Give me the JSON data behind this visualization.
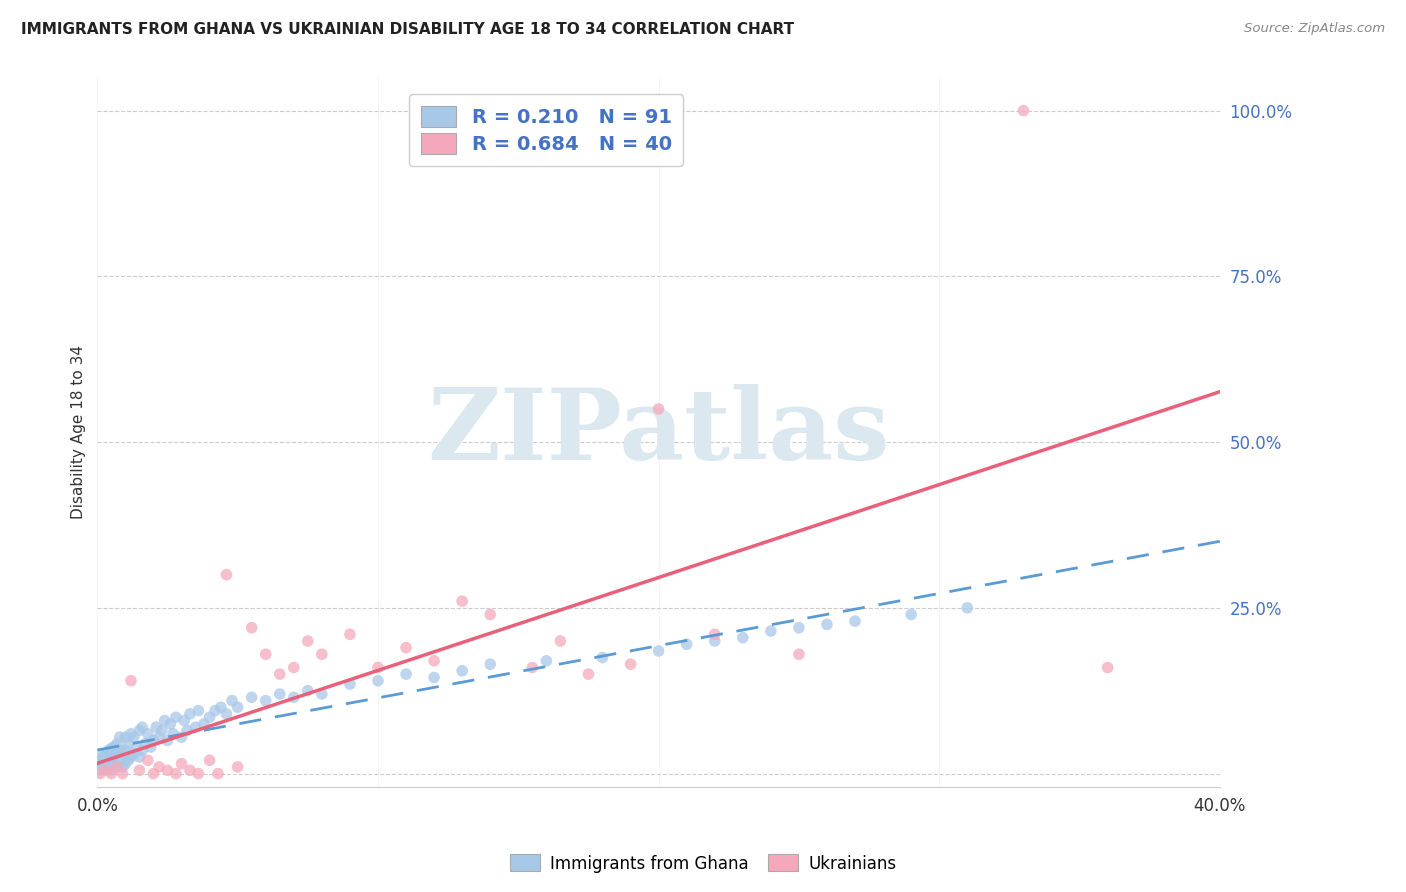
{
  "title": "IMMIGRANTS FROM GHANA VS UKRAINIAN DISABILITY AGE 18 TO 34 CORRELATION CHART",
  "source": "Source: ZipAtlas.com",
  "ylabel": "Disability Age 18 to 34",
  "xlim": [
    0.0,
    0.4
  ],
  "ylim": [
    -0.02,
    1.05
  ],
  "xticks": [
    0.0,
    0.1,
    0.2,
    0.3,
    0.4
  ],
  "xtick_labels": [
    "0.0%",
    "",
    "",
    "",
    "40.0%"
  ],
  "ytick_labels": [
    "",
    "25.0%",
    "50.0%",
    "75.0%",
    "100.0%"
  ],
  "yticks": [
    0.0,
    0.25,
    0.5,
    0.75,
    1.0
  ],
  "ghana_R": 0.21,
  "ghana_N": 91,
  "ukraine_R": 0.684,
  "ukraine_N": 40,
  "ghana_color": "#a8c8e8",
  "ukraine_color": "#f5a8bc",
  "ghana_line_color": "#5b9bd5",
  "ukraine_line_color": "#e8607a",
  "watermark": "ZIPatlas",
  "watermark_color": "#dce8f0",
  "legend_label_ghana": "Immigrants from Ghana",
  "legend_label_ukraine": "Ukrainians",
  "ghana_x": [
    0.001,
    0.001,
    0.001,
    0.002,
    0.002,
    0.002,
    0.002,
    0.003,
    0.003,
    0.003,
    0.004,
    0.004,
    0.004,
    0.005,
    0.005,
    0.005,
    0.005,
    0.006,
    0.006,
    0.006,
    0.007,
    0.007,
    0.007,
    0.008,
    0.008,
    0.008,
    0.009,
    0.009,
    0.01,
    0.01,
    0.01,
    0.011,
    0.011,
    0.012,
    0.012,
    0.013,
    0.013,
    0.014,
    0.015,
    0.015,
    0.016,
    0.016,
    0.017,
    0.018,
    0.019,
    0.02,
    0.021,
    0.022,
    0.023,
    0.024,
    0.025,
    0.026,
    0.027,
    0.028,
    0.03,
    0.031,
    0.032,
    0.033,
    0.035,
    0.036,
    0.038,
    0.04,
    0.042,
    0.044,
    0.046,
    0.048,
    0.05,
    0.055,
    0.06,
    0.065,
    0.07,
    0.075,
    0.08,
    0.09,
    0.1,
    0.11,
    0.12,
    0.13,
    0.14,
    0.16,
    0.18,
    0.2,
    0.21,
    0.22,
    0.23,
    0.24,
    0.25,
    0.26,
    0.27,
    0.29,
    0.31
  ],
  "ghana_y": [
    0.01,
    0.02,
    0.005,
    0.015,
    0.025,
    0.03,
    0.008,
    0.018,
    0.028,
    0.012,
    0.022,
    0.035,
    0.008,
    0.018,
    0.028,
    0.038,
    0.005,
    0.015,
    0.025,
    0.04,
    0.012,
    0.03,
    0.045,
    0.02,
    0.035,
    0.055,
    0.01,
    0.03,
    0.015,
    0.035,
    0.055,
    0.02,
    0.045,
    0.025,
    0.06,
    0.03,
    0.055,
    0.04,
    0.025,
    0.065,
    0.035,
    0.07,
    0.045,
    0.06,
    0.04,
    0.05,
    0.07,
    0.055,
    0.065,
    0.08,
    0.05,
    0.075,
    0.06,
    0.085,
    0.055,
    0.08,
    0.065,
    0.09,
    0.07,
    0.095,
    0.075,
    0.085,
    0.095,
    0.1,
    0.09,
    0.11,
    0.1,
    0.115,
    0.11,
    0.12,
    0.115,
    0.125,
    0.12,
    0.135,
    0.14,
    0.15,
    0.145,
    0.155,
    0.165,
    0.17,
    0.175,
    0.185,
    0.195,
    0.2,
    0.205,
    0.215,
    0.22,
    0.225,
    0.23,
    0.24,
    0.25
  ],
  "ukraine_x": [
    0.001,
    0.003,
    0.005,
    0.007,
    0.009,
    0.012,
    0.015,
    0.018,
    0.02,
    0.022,
    0.025,
    0.028,
    0.03,
    0.033,
    0.036,
    0.04,
    0.043,
    0.046,
    0.05,
    0.055,
    0.06,
    0.065,
    0.07,
    0.075,
    0.08,
    0.09,
    0.1,
    0.11,
    0.12,
    0.13,
    0.14,
    0.155,
    0.165,
    0.175,
    0.19,
    0.2,
    0.22,
    0.25,
    0.33,
    0.36
  ],
  "ukraine_y": [
    0.0,
    0.005,
    0.0,
    0.01,
    0.0,
    0.14,
    0.005,
    0.02,
    0.0,
    0.01,
    0.005,
    0.0,
    0.015,
    0.005,
    0.0,
    0.02,
    0.0,
    0.3,
    0.01,
    0.22,
    0.18,
    0.15,
    0.16,
    0.2,
    0.18,
    0.21,
    0.16,
    0.19,
    0.17,
    0.26,
    0.24,
    0.16,
    0.2,
    0.15,
    0.165,
    0.55,
    0.21,
    0.18,
    1.0,
    0.16
  ]
}
